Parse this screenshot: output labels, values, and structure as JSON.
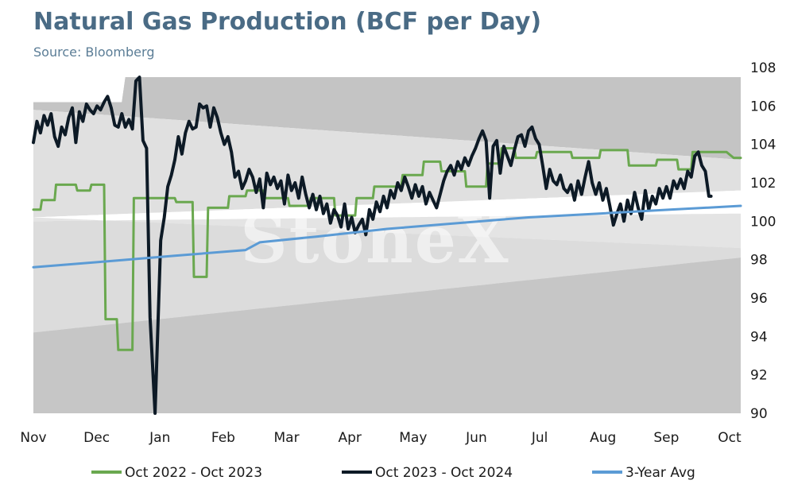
{
  "chart_data": {
    "type": "line",
    "title": "Natural Gas Production (BCF per Day)",
    "subtitle": "Source: Bloomberg",
    "watermark": "StoneX",
    "ylim": [
      90,
      108
    ],
    "yticks": [
      "108",
      "106",
      "104",
      "102",
      "100",
      "98",
      "96",
      "94",
      "92",
      "90"
    ],
    "y_axis_position": "right",
    "xticks": [
      "Nov",
      "Dec",
      "Jan",
      "Feb",
      "Mar",
      "Apr",
      "May",
      "Jun",
      "Jul",
      "Aug",
      "Sep",
      "Oct"
    ],
    "grid": false,
    "legend_position": "bottom",
    "bands": {
      "description": "5-year range shading (min/max envelope)",
      "outer_upper": [
        [
          0,
          106.2
        ],
        [
          0.125,
          106.2
        ],
        [
          0.1251,
          107.5
        ],
        [
          1,
          107.5
        ]
      ],
      "inner_upper": [
        [
          0,
          105.8
        ],
        [
          1,
          103.2
        ]
      ],
      "inner_lower": [
        [
          0,
          100.2
        ],
        [
          1,
          98.6
        ]
      ],
      "outer_lower": [
        [
          0,
          94.2
        ],
        [
          1,
          98.1
        ]
      ]
    },
    "series": [
      {
        "name": "Oct 2022 - Oct 2023",
        "color": "#6aa84f",
        "points": [
          [
            0,
            100.6
          ],
          [
            0.01,
            100.6
          ],
          [
            0.012,
            101.1
          ],
          [
            0.03,
            101.1
          ],
          [
            0.032,
            101.9
          ],
          [
            0.06,
            101.9
          ],
          [
            0.062,
            101.6
          ],
          [
            0.08,
            101.6
          ],
          [
            0.082,
            101.9
          ],
          [
            0.1,
            101.9
          ],
          [
            0.102,
            94.9
          ],
          [
            0.118,
            94.9
          ],
          [
            0.12,
            93.3
          ],
          [
            0.14,
            93.3
          ],
          [
            0.142,
            101.2
          ],
          [
            0.2,
            101.2
          ],
          [
            0.202,
            101.0
          ],
          [
            0.225,
            101.0
          ],
          [
            0.227,
            97.1
          ],
          [
            0.245,
            97.1
          ],
          [
            0.247,
            100.7
          ],
          [
            0.275,
            100.7
          ],
          [
            0.277,
            101.3
          ],
          [
            0.3,
            101.3
          ],
          [
            0.302,
            101.6
          ],
          [
            0.325,
            101.6
          ],
          [
            0.327,
            101.2
          ],
          [
            0.36,
            101.2
          ],
          [
            0.362,
            100.8
          ],
          [
            0.39,
            100.8
          ],
          [
            0.392,
            101.2
          ],
          [
            0.425,
            101.2
          ],
          [
            0.427,
            100.3
          ],
          [
            0.455,
            100.3
          ],
          [
            0.457,
            101.2
          ],
          [
            0.48,
            101.2
          ],
          [
            0.482,
            101.8
          ],
          [
            0.52,
            101.8
          ],
          [
            0.522,
            102.4
          ],
          [
            0.55,
            102.4
          ],
          [
            0.552,
            103.1
          ],
          [
            0.575,
            103.1
          ],
          [
            0.577,
            102.6
          ],
          [
            0.61,
            102.6
          ],
          [
            0.612,
            101.8
          ],
          [
            0.64,
            101.8
          ],
          [
            0.642,
            103.0
          ],
          [
            0.66,
            103.0
          ],
          [
            0.662,
            103.8
          ],
          [
            0.68,
            103.8
          ],
          [
            0.682,
            103.3
          ],
          [
            0.71,
            103.3
          ],
          [
            0.712,
            103.6
          ],
          [
            0.76,
            103.6
          ],
          [
            0.762,
            103.3
          ],
          [
            0.8,
            103.3
          ],
          [
            0.802,
            103.7
          ],
          [
            0.84,
            103.7
          ],
          [
            0.842,
            102.9
          ],
          [
            0.88,
            102.9
          ],
          [
            0.882,
            103.2
          ],
          [
            0.91,
            103.2
          ],
          [
            0.912,
            102.7
          ],
          [
            0.93,
            102.7
          ],
          [
            0.932,
            103.6
          ],
          [
            0.98,
            103.6
          ],
          [
            0.99,
            103.3
          ],
          [
            1,
            103.3
          ]
        ]
      },
      {
        "name": "Oct 2023 - Oct 2024",
        "color": "#0d1a26",
        "points": [
          [
            0,
            104.1
          ],
          [
            0.005,
            105.2
          ],
          [
            0.01,
            104.6
          ],
          [
            0.015,
            105.5
          ],
          [
            0.02,
            105.0
          ],
          [
            0.025,
            105.6
          ],
          [
            0.03,
            104.4
          ],
          [
            0.035,
            103.9
          ],
          [
            0.04,
            104.9
          ],
          [
            0.045,
            104.5
          ],
          [
            0.05,
            105.4
          ],
          [
            0.055,
            105.9
          ],
          [
            0.06,
            104.1
          ],
          [
            0.065,
            105.7
          ],
          [
            0.07,
            105.2
          ],
          [
            0.075,
            106.1
          ],
          [
            0.08,
            105.8
          ],
          [
            0.085,
            105.6
          ],
          [
            0.09,
            106.0
          ],
          [
            0.095,
            105.8
          ],
          [
            0.1,
            106.2
          ],
          [
            0.105,
            106.5
          ],
          [
            0.11,
            105.9
          ],
          [
            0.115,
            105.0
          ],
          [
            0.12,
            104.9
          ],
          [
            0.125,
            105.6
          ],
          [
            0.13,
            104.9
          ],
          [
            0.135,
            105.3
          ],
          [
            0.14,
            104.8
          ],
          [
            0.145,
            107.3
          ],
          [
            0.15,
            107.5
          ],
          [
            0.155,
            104.2
          ],
          [
            0.16,
            103.8
          ],
          [
            0.165,
            95.0
          ],
          [
            0.172,
            90.0
          ],
          [
            0.18,
            99.0
          ],
          [
            0.185,
            100.2
          ],
          [
            0.19,
            101.8
          ],
          [
            0.195,
            102.4
          ],
          [
            0.2,
            103.2
          ],
          [
            0.205,
            104.4
          ],
          [
            0.21,
            103.5
          ],
          [
            0.215,
            104.6
          ],
          [
            0.22,
            105.2
          ],
          [
            0.225,
            104.8
          ],
          [
            0.23,
            104.9
          ],
          [
            0.235,
            106.1
          ],
          [
            0.24,
            105.9
          ],
          [
            0.245,
            106.0
          ],
          [
            0.25,
            104.9
          ],
          [
            0.255,
            105.9
          ],
          [
            0.26,
            105.4
          ],
          [
            0.265,
            104.6
          ],
          [
            0.27,
            104.0
          ],
          [
            0.275,
            104.4
          ],
          [
            0.28,
            103.6
          ],
          [
            0.285,
            102.3
          ],
          [
            0.29,
            102.6
          ],
          [
            0.295,
            101.7
          ],
          [
            0.3,
            102.1
          ],
          [
            0.305,
            102.7
          ],
          [
            0.31,
            102.3
          ],
          [
            0.315,
            101.5
          ],
          [
            0.32,
            102.2
          ],
          [
            0.325,
            100.7
          ],
          [
            0.33,
            102.5
          ],
          [
            0.335,
            101.9
          ],
          [
            0.34,
            102.3
          ],
          [
            0.345,
            101.7
          ],
          [
            0.35,
            102.1
          ],
          [
            0.355,
            100.9
          ],
          [
            0.36,
            102.4
          ],
          [
            0.365,
            101.6
          ],
          [
            0.37,
            102.0
          ],
          [
            0.375,
            101.2
          ],
          [
            0.38,
            102.3
          ],
          [
            0.385,
            101.4
          ],
          [
            0.39,
            100.7
          ],
          [
            0.395,
            101.4
          ],
          [
            0.4,
            100.6
          ],
          [
            0.405,
            101.3
          ],
          [
            0.41,
            100.4
          ],
          [
            0.415,
            100.9
          ],
          [
            0.42,
            99.9
          ],
          [
            0.425,
            100.6
          ],
          [
            0.43,
            100.3
          ],
          [
            0.435,
            99.7
          ],
          [
            0.44,
            100.9
          ],
          [
            0.445,
            99.6
          ],
          [
            0.45,
            100.2
          ],
          [
            0.455,
            99.4
          ],
          [
            0.46,
            99.8
          ],
          [
            0.465,
            100.1
          ],
          [
            0.47,
            99.3
          ],
          [
            0.475,
            100.6
          ],
          [
            0.48,
            100.1
          ],
          [
            0.485,
            101.0
          ],
          [
            0.49,
            100.5
          ],
          [
            0.495,
            101.3
          ],
          [
            0.5,
            100.7
          ],
          [
            0.505,
            101.6
          ],
          [
            0.51,
            101.2
          ],
          [
            0.515,
            102.0
          ],
          [
            0.52,
            101.6
          ],
          [
            0.525,
            102.3
          ],
          [
            0.53,
            101.8
          ],
          [
            0.535,
            101.2
          ],
          [
            0.54,
            101.9
          ],
          [
            0.545,
            101.3
          ],
          [
            0.55,
            101.8
          ],
          [
            0.555,
            100.9
          ],
          [
            0.56,
            101.5
          ],
          [
            0.565,
            101.1
          ],
          [
            0.57,
            100.7
          ],
          [
            0.575,
            101.4
          ],
          [
            0.58,
            102.1
          ],
          [
            0.585,
            102.6
          ],
          [
            0.59,
            102.9
          ],
          [
            0.595,
            102.4
          ],
          [
            0.6,
            103.1
          ],
          [
            0.605,
            102.7
          ],
          [
            0.61,
            103.3
          ],
          [
            0.615,
            102.9
          ],
          [
            0.62,
            103.4
          ],
          [
            0.625,
            103.8
          ],
          [
            0.63,
            104.3
          ],
          [
            0.635,
            104.7
          ],
          [
            0.64,
            104.2
          ],
          [
            0.645,
            101.2
          ],
          [
            0.65,
            103.9
          ],
          [
            0.655,
            104.2
          ],
          [
            0.66,
            102.5
          ],
          [
            0.665,
            103.9
          ],
          [
            0.67,
            103.4
          ],
          [
            0.675,
            102.9
          ],
          [
            0.68,
            103.7
          ],
          [
            0.685,
            104.4
          ],
          [
            0.69,
            104.5
          ],
          [
            0.695,
            103.9
          ],
          [
            0.7,
            104.7
          ],
          [
            0.705,
            104.9
          ],
          [
            0.71,
            104.3
          ],
          [
            0.715,
            104.0
          ],
          [
            0.72,
            102.9
          ],
          [
            0.725,
            101.7
          ],
          [
            0.73,
            102.7
          ],
          [
            0.735,
            102.1
          ],
          [
            0.74,
            101.9
          ],
          [
            0.745,
            102.4
          ],
          [
            0.75,
            101.7
          ],
          [
            0.755,
            101.5
          ],
          [
            0.76,
            101.9
          ],
          [
            0.765,
            101.1
          ],
          [
            0.77,
            102.1
          ],
          [
            0.775,
            101.4
          ],
          [
            0.78,
            102.3
          ],
          [
            0.785,
            103.1
          ],
          [
            0.79,
            102.0
          ],
          [
            0.795,
            101.4
          ],
          [
            0.8,
            102.0
          ],
          [
            0.805,
            101.1
          ],
          [
            0.81,
            101.7
          ],
          [
            0.815,
            100.8
          ],
          [
            0.82,
            99.8
          ],
          [
            0.825,
            100.4
          ],
          [
            0.83,
            100.9
          ],
          [
            0.835,
            100.0
          ],
          [
            0.84,
            101.1
          ],
          [
            0.845,
            100.4
          ],
          [
            0.85,
            101.5
          ],
          [
            0.855,
            100.7
          ],
          [
            0.86,
            100.1
          ],
          [
            0.865,
            101.6
          ],
          [
            0.87,
            100.6
          ],
          [
            0.875,
            101.3
          ],
          [
            0.88,
            100.9
          ],
          [
            0.885,
            101.7
          ],
          [
            0.89,
            101.2
          ],
          [
            0.895,
            101.8
          ],
          [
            0.9,
            101.2
          ],
          [
            0.905,
            102.1
          ],
          [
            0.91,
            101.7
          ],
          [
            0.915,
            102.2
          ],
          [
            0.92,
            101.7
          ],
          [
            0.925,
            102.6
          ],
          [
            0.93,
            102.3
          ],
          [
            0.935,
            103.4
          ],
          [
            0.94,
            103.6
          ],
          [
            0.945,
            102.9
          ],
          [
            0.95,
            102.6
          ],
          [
            0.955,
            101.3
          ],
          [
            0.958,
            101.3
          ]
        ]
      },
      {
        "name": "3-Year Avg",
        "color": "#5b9bd5",
        "points": [
          [
            0,
            97.6
          ],
          [
            0.1,
            97.9
          ],
          [
            0.2,
            98.2
          ],
          [
            0.3,
            98.5
          ],
          [
            0.32,
            98.9
          ],
          [
            0.4,
            99.2
          ],
          [
            0.5,
            99.6
          ],
          [
            0.6,
            99.9
          ],
          [
            0.7,
            100.2
          ],
          [
            0.8,
            100.4
          ],
          [
            0.9,
            100.6
          ],
          [
            1,
            100.8
          ]
        ]
      }
    ]
  }
}
